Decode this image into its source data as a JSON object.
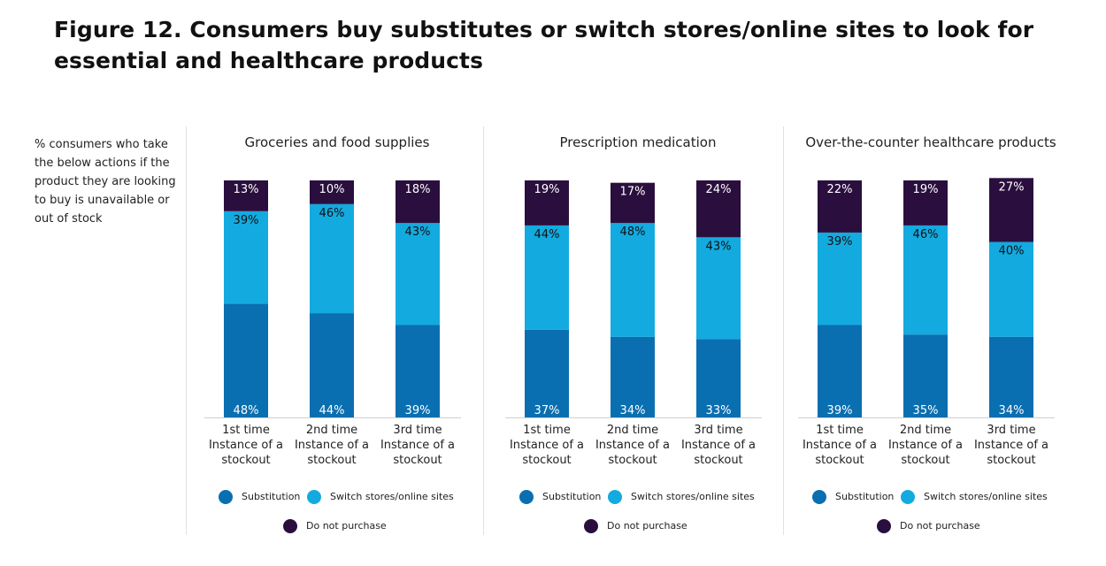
{
  "title": "Figure 12. Consumers buy substitutes or switch stores/online sites to look for essential and healthcare products",
  "side_note": "% consumers who take the below actions if the product they are looking to buy is unavailable or out of stock",
  "legend": [
    {
      "name": "Substitution",
      "color": "#0a6fb0"
    },
    {
      "name": "Switch stores/online sites",
      "color": "#13aadf"
    },
    {
      "name": "Do not purchase",
      "color": "#2a0f3e"
    }
  ],
  "chart_data": [
    {
      "type": "bar",
      "stacked": true,
      "title": "Groceries and food supplies",
      "categories": [
        "1st time Instance of a stockout",
        "2nd time Instance of a stockout",
        "3rd time Instance of a stockout"
      ],
      "series": [
        {
          "name": "Substitution",
          "values": [
            48,
            44,
            39
          ],
          "labels": [
            "48%",
            "44%",
            "39%"
          ]
        },
        {
          "name": "Switch stores/online sites",
          "values": [
            39,
            46,
            43
          ],
          "labels": [
            "39%",
            "46%",
            "43%"
          ]
        },
        {
          "name": "Do not purchase",
          "values": [
            13,
            10,
            18
          ],
          "labels": [
            "13%",
            "10%",
            "18%"
          ]
        }
      ]
    },
    {
      "type": "bar",
      "stacked": true,
      "title": "Prescription medication",
      "categories": [
        "1st time Instance of a stockout",
        "2nd time Instance of a stockout",
        "3rd time Instance of a stockout"
      ],
      "series": [
        {
          "name": "Substitution",
          "values": [
            37,
            34,
            33
          ],
          "labels": [
            "37%",
            "34%",
            "33%"
          ]
        },
        {
          "name": "Switch stores/online sites",
          "values": [
            44,
            48,
            43
          ],
          "labels": [
            "44%",
            "48%",
            "43%"
          ]
        },
        {
          "name": "Do not purchase",
          "values": [
            19,
            17,
            24
          ],
          "labels": [
            "19%",
            "17%",
            "24%"
          ]
        }
      ]
    },
    {
      "type": "bar",
      "stacked": true,
      "title": "Over-the-counter healthcare products",
      "categories": [
        "1st time Instance of a stockout",
        "2nd time Instance of a stockout",
        "3rd time Instance of a stockout"
      ],
      "series": [
        {
          "name": "Substitution",
          "values": [
            39,
            35,
            34
          ],
          "labels": [
            "39%",
            "35%",
            "34%"
          ]
        },
        {
          "name": "Switch stores/online sites",
          "values": [
            39,
            46,
            40
          ],
          "labels": [
            "39%",
            "46%",
            "40%"
          ]
        },
        {
          "name": "Do not purchase",
          "values": [
            22,
            19,
            27
          ],
          "labels": [
            "22%",
            "19%",
            "27%"
          ]
        }
      ]
    }
  ]
}
